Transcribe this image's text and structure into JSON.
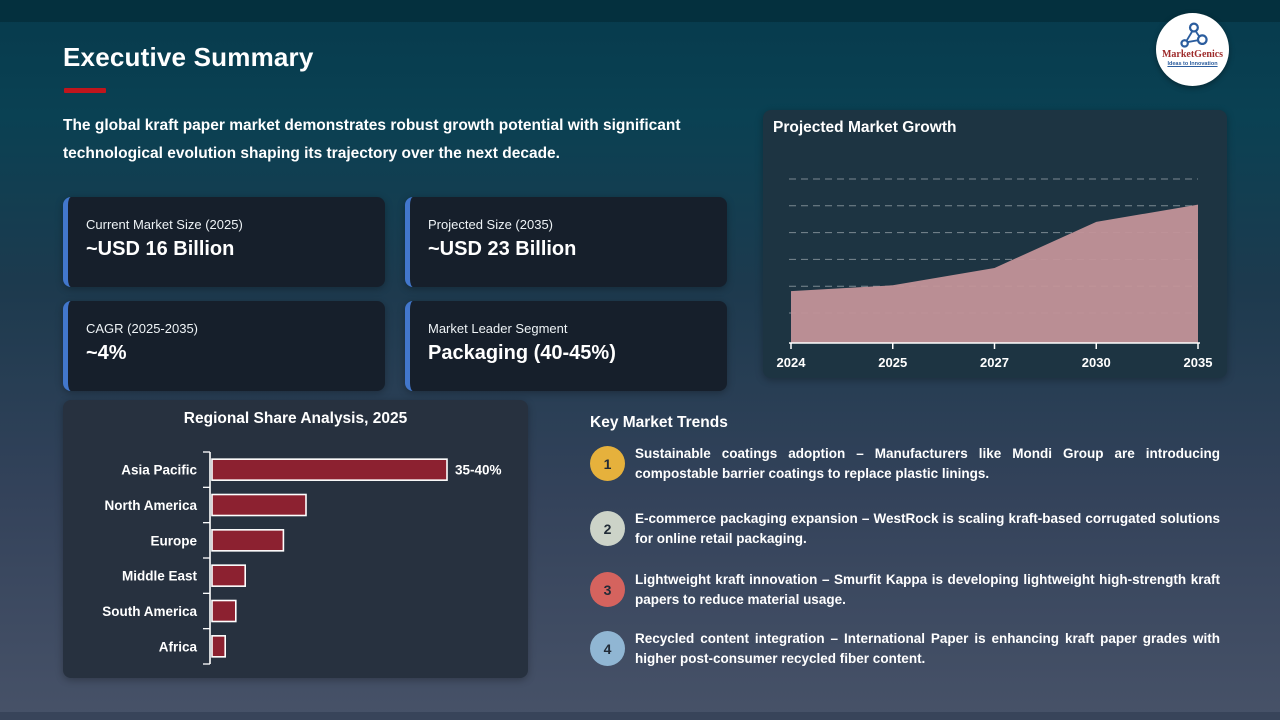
{
  "slide": {
    "title": "Executive Summary",
    "intro": "The global kraft paper market demonstrates robust growth potential with significant technological evolution shaping its trajectory over the next decade."
  },
  "logo": {
    "brand": "MarketGenics",
    "tagline": "Ideas to Innovation"
  },
  "stat_cards": [
    {
      "label": "Current Market Size (2025)",
      "value": "~USD 16 Billion"
    },
    {
      "label": "Projected Size (2035)",
      "value": "~USD 23 Billion"
    },
    {
      "label": "CAGR (2025-2035)",
      "value": "~4%"
    },
    {
      "label": "Market Leader Segment",
      "value": "Packaging (40-45%)"
    }
  ],
  "trends": {
    "heading": "Key Market Trends",
    "items": [
      {
        "num": "1",
        "color": "#e6b13c",
        "text": "Sustainable coatings adoption – Manufacturers like Mondi Group are introducing compostable barrier coatings to replace plastic linings."
      },
      {
        "num": "2",
        "color": "#ccd3c8",
        "text": "E-commerce packaging expansion – WestRock is scaling kraft-based corrugated solutions for online retail packaging."
      },
      {
        "num": "3",
        "color": "#d5635e",
        "text": "Lightweight kraft innovation – Smurfit Kappa is developing lightweight high-strength kraft papers to reduce material usage."
      },
      {
        "num": "4",
        "color": "#90b6d3",
        "text": "Recycled content integration – International Paper is enhancing kraft paper grades with higher post-consumer recycled fiber content."
      }
    ]
  },
  "chart_data": [
    {
      "id": "projected_market_growth",
      "type": "area",
      "title": "Projected Market Growth",
      "x": [
        "2024",
        "2025",
        "2027",
        "2030",
        "2035"
      ],
      "values": [
        15.5,
        16,
        17.5,
        21.5,
        23
      ],
      "unit": "USD Billion (estimated; y-axis unlabeled)",
      "ylim": [
        11,
        26
      ],
      "grid": "dashed horizontal, 6 lines",
      "legend": "none",
      "fill_color": "#c39399"
    },
    {
      "id": "regional_share_analysis_2025",
      "type": "bar",
      "orientation": "horizontal",
      "title": "Regional Share Analysis, 2025",
      "categories": [
        "Asia Pacific",
        "North America",
        "Europe",
        "Middle East",
        "South America",
        "Africa"
      ],
      "values": [
        37.5,
        15,
        11.4,
        5.3,
        3.8,
        2.1
      ],
      "data_labels": [
        "35-40%",
        "",
        "",
        "",
        "",
        ""
      ],
      "unit": "% market share (only leader labeled)",
      "legend": "none",
      "bar_color": "#8c2130"
    }
  ]
}
